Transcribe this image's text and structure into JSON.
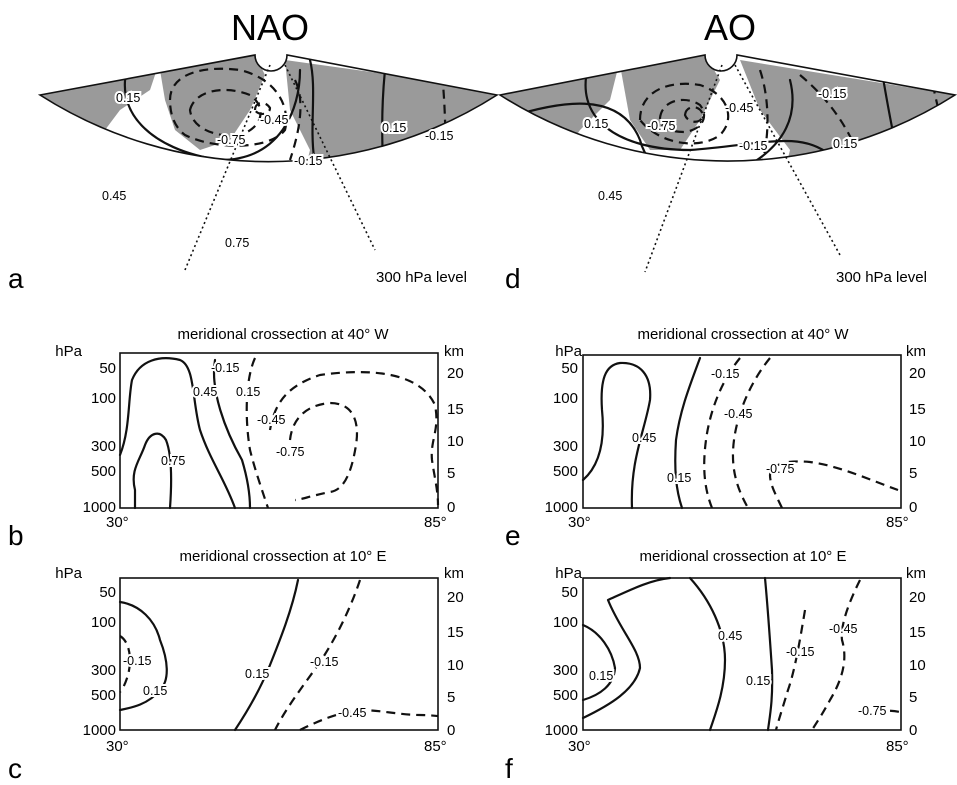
{
  "panels": {
    "a": {
      "heading": "NAO",
      "letter": "a",
      "level": "300 hPa level",
      "labels": {
        "p1": "0.15",
        "p2": "-0.45",
        "p3": "-0.75",
        "p4": "-0.15",
        "p5": "0.15",
        "p6": "-0.15",
        "p7": "0.45",
        "p8": "0.75"
      }
    },
    "d": {
      "heading": "AO",
      "letter": "d",
      "level": "300 hPa level",
      "labels": {
        "p1": "0.15",
        "p2": "-0.75",
        "p3": "-0.45",
        "p4": "-0.15",
        "p5": "-0.15",
        "p6": "0.15",
        "p7": "0.45"
      }
    },
    "b": {
      "letter": "b",
      "subtitle": "meridional crossection at 40° W",
      "labels": {
        "p1": "-0.15",
        "p2": "0.45",
        "p3": "0.15",
        "p4": "-0.45",
        "p5": "-0.75",
        "p6": "0.75"
      }
    },
    "c": {
      "letter": "c",
      "subtitle": "meridional crossection at 10° E",
      "labels": {
        "p1": "-0.15",
        "p2": "0.15",
        "p3": "0.15",
        "p4": "-0.15",
        "p5": "-0.45"
      }
    },
    "e": {
      "letter": "e",
      "subtitle": "meridional crossection at 40° W",
      "labels": {
        "p1": "-0.15",
        "p2": "-0.45",
        "p3": "0.45",
        "p4": "0.15",
        "p5": "-0.75"
      }
    },
    "f": {
      "letter": "f",
      "subtitle": "meridional crossection at 10° E",
      "labels": {
        "p1": "0.45",
        "p2": "-0.15",
        "p3": "-0.45",
        "p4": "0.15",
        "p5": "0.15",
        "p6": "-0.75"
      }
    }
  },
  "axes": {
    "left_unit": "hPa",
    "right_unit": "km",
    "pressure_ticks": [
      "50",
      "100",
      "300",
      "500",
      "1000"
    ],
    "height_ticks": [
      "20",
      "15",
      "10",
      "5",
      "0"
    ],
    "x_start": "30°",
    "x_end": "85°"
  },
  "colors": {
    "line": "#111111",
    "land": "#9a9a9a",
    "background": "#ffffff"
  }
}
